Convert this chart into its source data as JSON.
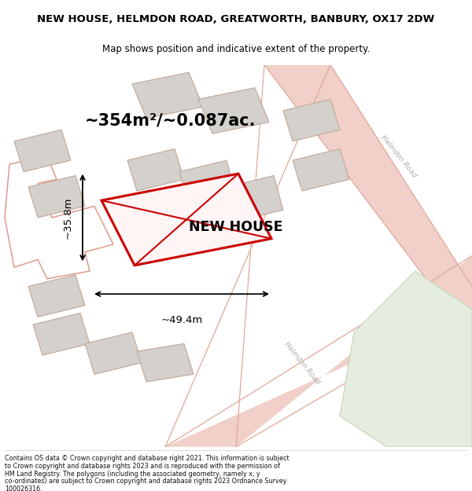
{
  "title": "NEW HOUSE, HELMDON ROAD, GREATWORTH, BANBURY, OX17 2DW",
  "subtitle": "Map shows position and indicative extent of the property.",
  "area_label": "~354m²/~0.087ac.",
  "property_label": "NEW HOUSE",
  "width_label": "~49.4m",
  "height_label": "~35.8m",
  "footer_lines": [
    "Contains OS data © Crown copyright and database right 2021. This information is subject",
    "to Crown copyright and database rights 2023 and is reproduced with the permission of",
    "HM Land Registry. The polygons (including the associated geometry, namely x, y",
    "co-ordinates) are subject to Crown copyright and database rights 2023 Ordnance Survey",
    "100026316."
  ],
  "bg_color": "#f2ede8",
  "road_color_light": "#f0d0c8",
  "building_fill": "#d4d0cc",
  "building_outline": "#c0a898",
  "red_outline": "#cc0000",
  "title_color": "#000000",
  "footer_color": "#111111"
}
